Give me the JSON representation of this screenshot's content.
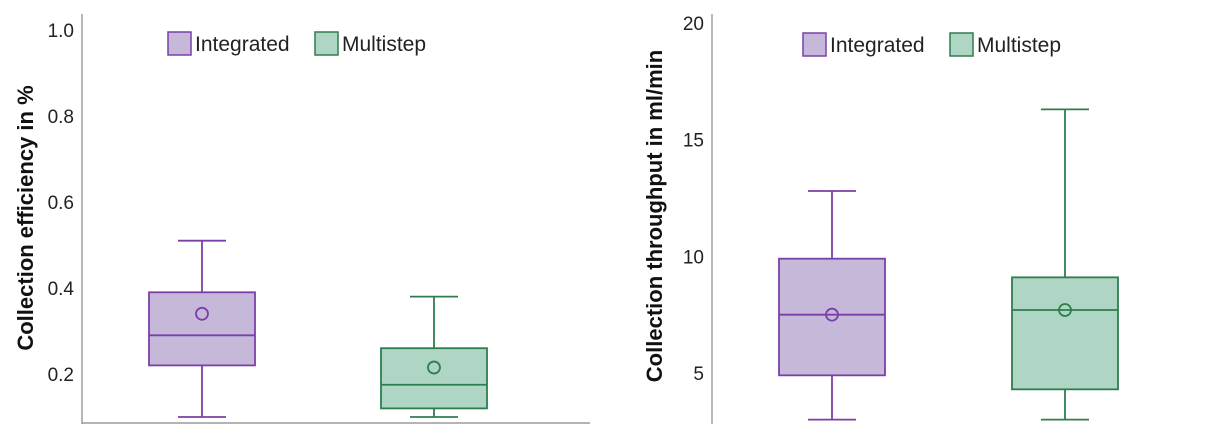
{
  "colors": {
    "integrated_stroke": "#7b3fa8",
    "integrated_fill": "#c5b8d9",
    "multistep_stroke": "#2e7d4f",
    "multistep_fill": "#afd6c4",
    "axis": "#888888"
  },
  "chart_data": [
    {
      "type": "box",
      "ylabel": "Collection efficiency in %",
      "xlabel": "",
      "ylim": [
        0.1,
        1.0
      ],
      "yticks": [
        0.2,
        0.4,
        0.6,
        0.8,
        1.0
      ],
      "ytick_labels": [
        "0.2",
        "0.4",
        "0.6",
        "0.8",
        "1.0"
      ],
      "legend": [
        "Integrated",
        "Multistep"
      ],
      "legend_position": "top",
      "grid": false,
      "series": [
        {
          "name": "Integrated",
          "whisker_low": 0.1,
          "q1": 0.22,
          "median": 0.29,
          "q3": 0.39,
          "whisker_high": 0.51,
          "mean": 0.34
        },
        {
          "name": "Multistep",
          "whisker_low": 0.1,
          "q1": 0.12,
          "median": 0.175,
          "q3": 0.26,
          "whisker_high": 0.38,
          "mean": 0.215
        }
      ]
    },
    {
      "type": "box",
      "ylabel": "Collection throughput in ml/min",
      "xlabel": "",
      "ylim": [
        3,
        20
      ],
      "yticks": [
        5,
        10,
        15,
        20
      ],
      "ytick_labels": [
        "5",
        "10",
        "15",
        "20"
      ],
      "legend": [
        "Integrated",
        "Multistep"
      ],
      "legend_position": "top",
      "grid": false,
      "series": [
        {
          "name": "Integrated",
          "whisker_low": 3.0,
          "q1": 4.9,
          "median": 7.5,
          "q3": 9.9,
          "whisker_high": 12.8,
          "mean": 7.5
        },
        {
          "name": "Multistep",
          "whisker_low": 3.0,
          "q1": 4.3,
          "median": 7.7,
          "q3": 9.1,
          "whisker_high": 16.3,
          "mean": 7.7
        }
      ]
    }
  ]
}
